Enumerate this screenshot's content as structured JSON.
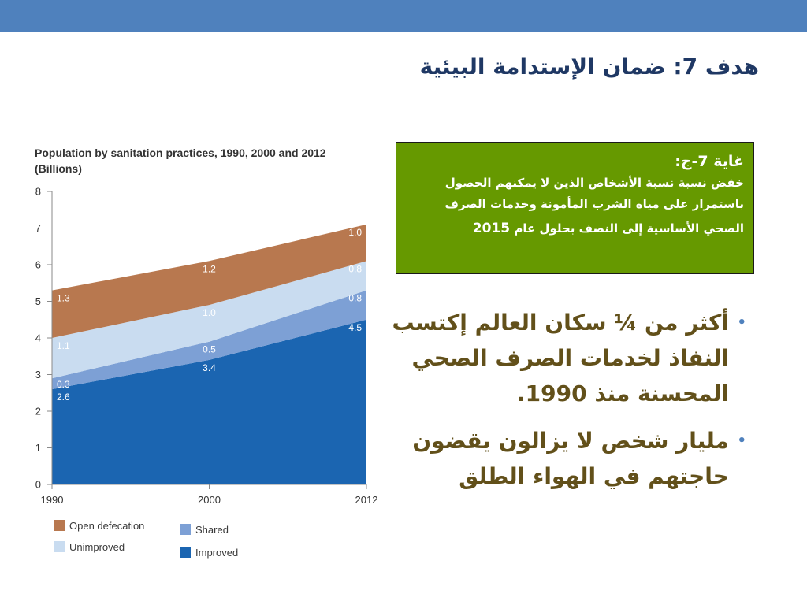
{
  "theme": {
    "header_bar_color": "#4F81BD",
    "title_color": "#1F3864",
    "target_box_color": "#669900",
    "bullet_text_color": "#62501A",
    "bullet_marker_color": "#4F81BD"
  },
  "slide": {
    "title": "هدف 7: ضمان الإستدامة البيئية",
    "target_box": {
      "heading": "غاية 7-ج:",
      "lines": [
        "خفض نسبة نسبة الأشخاص الذين لا يمكنهم الحصول",
        "باستمرار على مياه الشرب المأمونة وخدمات الصرف"
      ],
      "last_line": "الصحي الأساسية إلى النصف بحلول عام",
      "year": "2015"
    },
    "bullets": [
      {
        "marker": "•",
        "lines": [
          "أكثر من ¼ سكان العالم إكتسب",
          "النفاذ لخدمات الصرف الصحي",
          "المحسنة منذ 1990."
        ]
      },
      {
        "marker": "•",
        "lines": [
          "مليار شخص لا يزالون يقضون",
          "حاجتهم في الهواء الطلق"
        ]
      }
    ]
  },
  "chart_data": {
    "type": "area",
    "stacked": true,
    "title": "Population by sanitation practices, 1990, 2000 and 2012",
    "subtitle": "(Billions)",
    "categories": [
      "1990",
      "2000",
      "2012"
    ],
    "ylim": [
      0,
      8
    ],
    "yticks": [
      0,
      1,
      2,
      3,
      4,
      5,
      6,
      7,
      8
    ],
    "grid": false,
    "legend_position": "bottom",
    "data_labels": true,
    "series": [
      {
        "name": "Improved",
        "values": [
          2.6,
          3.4,
          4.5
        ],
        "color": "#1B65B1"
      },
      {
        "name": "Shared",
        "values": [
          0.3,
          0.5,
          0.8
        ],
        "color": "#7DA0D5"
      },
      {
        "name": "Unimproved",
        "values": [
          1.1,
          1.0,
          0.8
        ],
        "color": "#C9DCF0"
      },
      {
        "name": "Open defecation",
        "values": [
          1.3,
          1.2,
          1.0
        ],
        "color": "#B8784F"
      }
    ]
  }
}
